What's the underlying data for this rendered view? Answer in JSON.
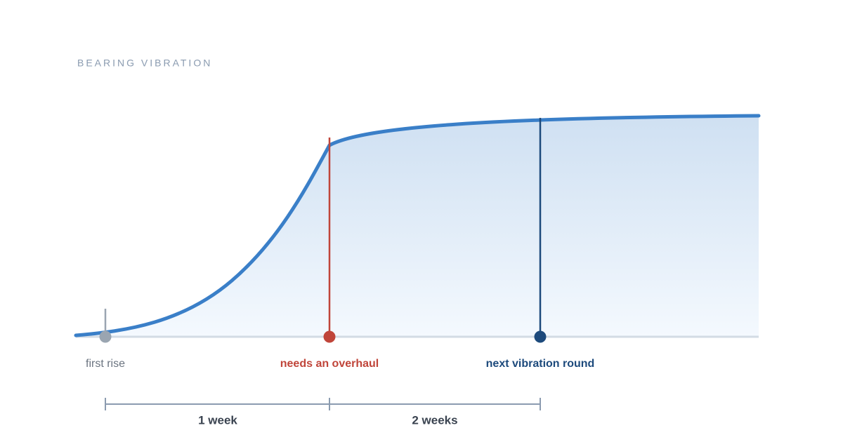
{
  "title": "BEARING VIBRATION",
  "markers": [
    {
      "label": "first rise"
    },
    {
      "label": "needs an overhaul"
    },
    {
      "label": "next vibration round"
    }
  ],
  "spans": [
    {
      "label": "1 week"
    },
    {
      "label": "2 weeks"
    }
  ]
}
